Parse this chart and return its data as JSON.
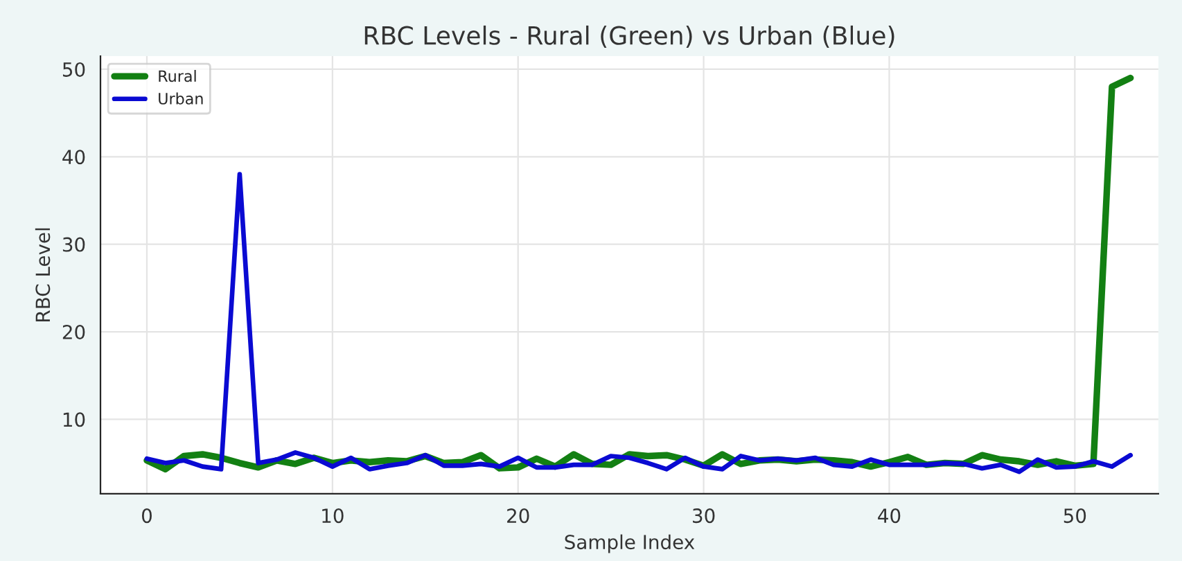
{
  "chart_data": {
    "type": "line",
    "title": "RBC Levels - Rural (Green) vs Urban (Blue)",
    "xlabel": "Sample Index",
    "ylabel": "RBC Level",
    "x": [
      0,
      1,
      2,
      3,
      4,
      5,
      6,
      7,
      8,
      9,
      10,
      11,
      12,
      13,
      14,
      15,
      16,
      17,
      18,
      19,
      20,
      21,
      22,
      23,
      24,
      25,
      26,
      27,
      28,
      29,
      30,
      31,
      32,
      33,
      34,
      35,
      36,
      37,
      38,
      39,
      40,
      41,
      42,
      43,
      44,
      45,
      46,
      47,
      48,
      49,
      50,
      51,
      52,
      53
    ],
    "series": [
      {
        "name": "Rural",
        "color": "#138013",
        "values": [
          5.3,
          4.3,
          5.8,
          6.0,
          5.6,
          5.0,
          4.5,
          5.3,
          4.9,
          5.6,
          5.0,
          5.3,
          5.1,
          5.3,
          5.2,
          5.8,
          5.0,
          5.1,
          5.9,
          4.4,
          4.5,
          5.5,
          4.6,
          6.0,
          4.9,
          4.8,
          6.0,
          5.8,
          5.9,
          5.4,
          4.7,
          6.0,
          4.9,
          5.3,
          5.4,
          5.2,
          5.4,
          5.3,
          5.1,
          4.6,
          5.1,
          5.7,
          4.8,
          5.0,
          4.9,
          5.9,
          5.4,
          5.2,
          4.8,
          5.2,
          4.7,
          4.9,
          48.0,
          49.0
        ]
      },
      {
        "name": "Urban",
        "color": "#0a0ad2",
        "values": [
          5.5,
          5.0,
          5.3,
          4.6,
          4.3,
          38.0,
          5.0,
          5.4,
          6.2,
          5.6,
          4.6,
          5.6,
          4.3,
          4.7,
          5.0,
          5.9,
          4.7,
          4.7,
          4.9,
          4.6,
          5.6,
          4.5,
          4.5,
          4.8,
          4.8,
          5.8,
          5.6,
          5.0,
          4.3,
          5.6,
          4.6,
          4.3,
          5.8,
          5.3,
          5.5,
          5.3,
          5.6,
          4.8,
          4.6,
          5.4,
          4.8,
          4.8,
          4.8,
          5.0,
          4.9,
          4.4,
          4.8,
          4.0,
          5.4,
          4.5,
          4.6,
          5.2,
          4.6,
          5.9
        ]
      }
    ],
    "xlim": [
      -2.5,
      54.5
    ],
    "ylim": [
      1.5,
      51.5
    ],
    "xticks": [
      0,
      10,
      20,
      30,
      40,
      50
    ],
    "yticks": [
      10,
      20,
      30,
      40,
      50
    ],
    "grid": true,
    "legend": "top left",
    "marker": "none",
    "line_style": "solid"
  }
}
